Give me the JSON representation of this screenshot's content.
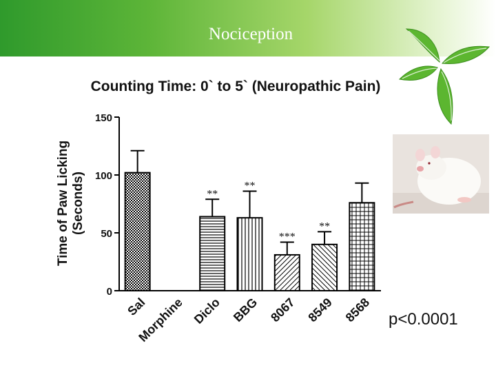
{
  "slide": {
    "title": "Nociception",
    "p_value": "p<0.0001"
  },
  "icons": {
    "header_decoration": "green-leaves-icon",
    "photo": "rat-licking-paw-photo"
  },
  "colors": {
    "header_green": "#2f9a2c",
    "header_light": "#a6d66a",
    "bar_outline": "#000000"
  },
  "chart_data": {
    "type": "bar",
    "title": "Counting Time: 0` to 5` (Neuropathic Pain)",
    "ylabel_lines": [
      "Time of Paw Licking",
      "(Seconds)"
    ],
    "xlabel": "",
    "ylim": [
      0,
      150
    ],
    "yticks": [
      0,
      50,
      100,
      150
    ],
    "categories": [
      "Sal",
      "Morphine",
      "Diclo",
      "BBG",
      "8067",
      "8549",
      "8568"
    ],
    "values": [
      102,
      0,
      64,
      63,
      31,
      40,
      76
    ],
    "errors": [
      19,
      0,
      15,
      23,
      11,
      11,
      17
    ],
    "significance": [
      "",
      "",
      "**",
      "**",
      "***",
      "**",
      ""
    ],
    "patterns": [
      "checker",
      "none",
      "hlines",
      "vlines",
      "diag-right",
      "diag-left",
      "grid"
    ],
    "grid": false,
    "legend": "none"
  }
}
